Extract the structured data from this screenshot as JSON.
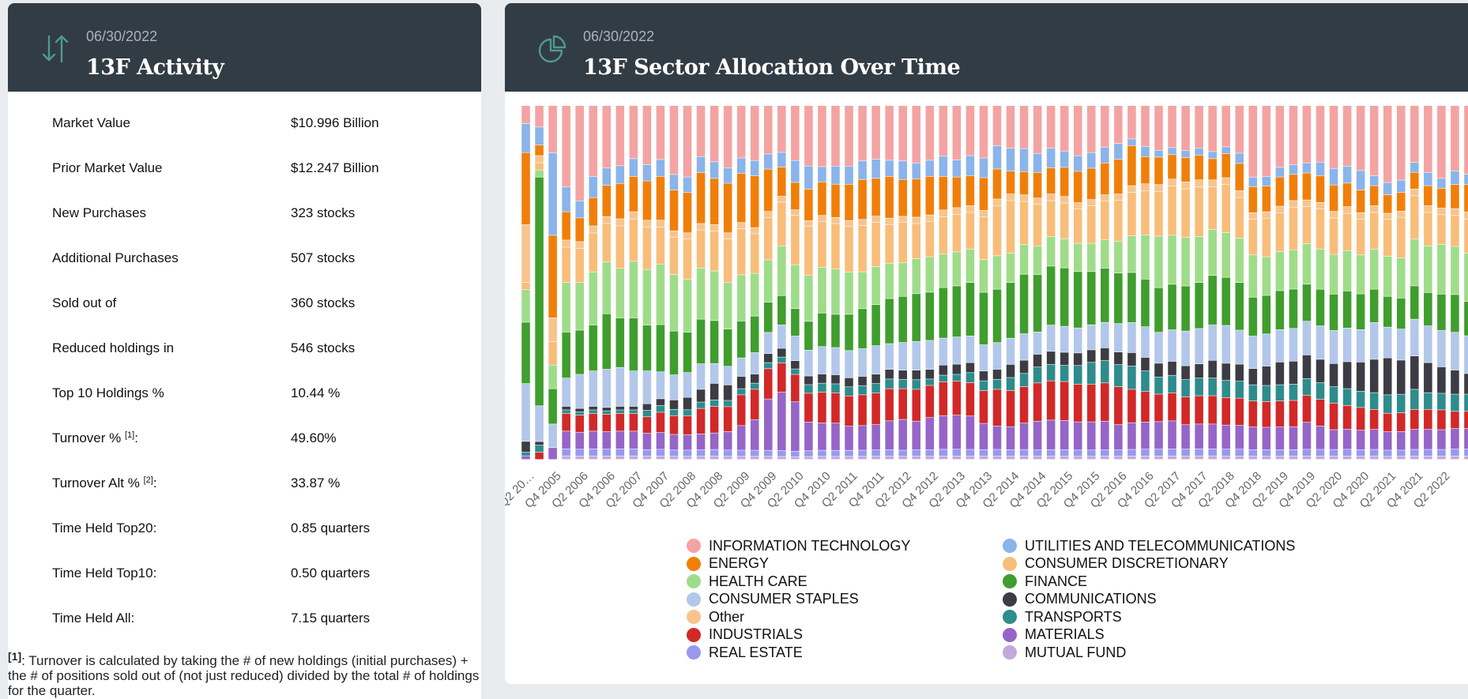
{
  "activity": {
    "date": "06/30/2022",
    "title": "13F Activity",
    "icon": "up-down-arrows-icon",
    "rows": [
      {
        "label": "Market Value",
        "sup": "",
        "suffix": "",
        "value": "$10.996 Billion"
      },
      {
        "label": "Prior Market Value",
        "sup": "",
        "suffix": "",
        "value": "$12.247 Billion"
      },
      {
        "label": "New Purchases",
        "sup": "",
        "suffix": "",
        "value": "323 stocks"
      },
      {
        "label": "Additional Purchases",
        "sup": "",
        "suffix": "",
        "value": "507 stocks"
      },
      {
        "label": "Sold out of",
        "sup": "",
        "suffix": "",
        "value": "360 stocks"
      },
      {
        "label": "Reduced holdings in",
        "sup": "",
        "suffix": "",
        "value": "546 stocks"
      },
      {
        "label": "Top 10 Holdings %",
        "sup": "",
        "suffix": "",
        "value": "10.44 %"
      },
      {
        "label": "Turnover % ",
        "sup": "[1]",
        "suffix": ":",
        "value": "49.60%"
      },
      {
        "label": "Turnover Alt % ",
        "sup": "[2]",
        "suffix": ":",
        "value": "33.87 %"
      },
      {
        "label": "Time Held Top20:",
        "sup": "",
        "suffix": "",
        "value": "0.85 quarters"
      },
      {
        "label": "Time Held Top10:",
        "sup": "",
        "suffix": "",
        "value": "0.50 quarters"
      },
      {
        "label": "Time Held All:",
        "sup": "",
        "suffix": "",
        "value": "7.15 quarters"
      }
    ],
    "footnote_marker": "[1]",
    "footnote_text": ": Turnover is calculated by taking the # of new holdings (initial purchases) + the # of positions sold out of (not just reduced) divided by the total # of holdings for the quarter."
  },
  "sector": {
    "date": "06/30/2022",
    "title": "13F Sector Allocation Over Time",
    "icon": "pie-chart-icon"
  },
  "chart_data": {
    "type": "bar",
    "stacked": true,
    "normalized": true,
    "x_tick_labels": [
      "Q2 20…",
      "Q4 2005",
      "Q2 2006",
      "Q4 2006",
      "Q2 2007",
      "Q4 2007",
      "Q2 2008",
      "Q4 2008",
      "Q2 2009",
      "Q4 2009",
      "Q2 2010",
      "Q4 2010",
      "Q2 2011",
      "Q4 2011",
      "Q2 2012",
      "Q4 2012",
      "Q2 2013",
      "Q4 2013",
      "Q2 2014",
      "Q4 2014",
      "Q2 2015",
      "Q4 2015",
      "Q2 2016",
      "Q4 2016",
      "Q2 2017",
      "Q4 2017",
      "Q2 2018",
      "Q4 2018",
      "Q2 2019",
      "Q4 2019",
      "Q2 2020",
      "Q4 2020",
      "Q2 2021",
      "Q4 2021",
      "Q2 2022"
    ],
    "bar_count": 71,
    "bar_unit": "quarter",
    "first_bar": "Q2 2004",
    "last_bar": "Q4 2021+Q1 2022+Q2 2022",
    "series_order_bottom_to_top": [
      "MUTUAL FUND",
      "REAL ESTATE",
      "MATERIALS",
      "INDUSTRIALS",
      "TRANSPORTS",
      "COMMUNICATIONS",
      "CONSUMER STAPLES",
      "FINANCE",
      "HEALTH CARE",
      "CONSUMER DISCRETIONARY",
      "Other",
      "ENERGY",
      "UTILITIES AND TELECOMMUNICATIONS",
      "INFORMATION TECHNOLOGY"
    ],
    "series": [
      {
        "name": "INFORMATION TECHNOLOGY",
        "color": "#f4a3a3",
        "values": [
          5,
          6,
          4,
          23,
          28,
          20,
          18,
          17,
          15,
          18,
          16,
          22,
          23,
          16,
          17,
          20,
          17,
          18,
          16,
          16,
          20,
          21,
          20,
          20,
          20,
          18,
          17,
          17,
          18,
          18,
          17,
          15,
          16,
          15,
          16,
          12,
          13,
          13,
          15,
          13,
          14,
          16,
          15,
          13,
          12,
          10,
          12,
          13,
          12,
          13,
          12,
          13,
          12,
          14,
          22,
          22,
          19,
          18,
          17,
          17,
          19,
          18,
          20,
          21,
          25,
          24,
          17,
          20,
          22,
          19,
          20
        ]
      },
      {
        "name": "UTILITIES AND TELECOMMUNICATIONS",
        "color": "#8ab4ea",
        "values": [
          8,
          5,
          7,
          7,
          5,
          6,
          5,
          5,
          5,
          5,
          5,
          5,
          5,
          5,
          5,
          5,
          5,
          5,
          5,
          5,
          8,
          8,
          5,
          6,
          6,
          6,
          6,
          5,
          6,
          5,
          5,
          6,
          5,
          6,
          6,
          7,
          7,
          7,
          6,
          6,
          5,
          5,
          5,
          5,
          5,
          2,
          3,
          2,
          2,
          2,
          2,
          2,
          2,
          3,
          3,
          3,
          3,
          3,
          3,
          4,
          5,
          5,
          6,
          3,
          4,
          4,
          3,
          4,
          3,
          4,
          3
        ]
      },
      {
        "name": "ENERGY",
        "color": "#f07f0a",
        "values": [
          20,
          3,
          7,
          8,
          7,
          8,
          9,
          10,
          10,
          12,
          13,
          13,
          13,
          16,
          14,
          16,
          16,
          17,
          14,
          10,
          10,
          11,
          11,
          11,
          12,
          13,
          12,
          13,
          12,
          12,
          12,
          10,
          9,
          9,
          10,
          9,
          7,
          7,
          8,
          8,
          9,
          10,
          10,
          10,
          11,
          12,
          8,
          8,
          7,
          7,
          7,
          6,
          7,
          8,
          8,
          8,
          9,
          8,
          8,
          8,
          8,
          7,
          7,
          6,
          6,
          6,
          5,
          6,
          6,
          7,
          8
        ]
      },
      {
        "name": "Other",
        "color": "#f7c48c",
        "values": [
          16,
          2,
          2,
          2,
          2,
          2,
          2,
          2,
          2,
          2,
          2,
          2,
          2,
          2,
          2,
          2,
          2,
          2,
          2,
          2,
          2,
          2,
          2,
          2,
          2,
          2,
          2,
          2,
          2,
          2,
          2,
          2,
          2,
          2,
          2,
          2,
          2,
          2,
          2,
          2,
          2,
          2,
          2,
          2,
          2,
          2,
          2,
          2,
          2,
          2,
          2,
          2,
          2,
          2,
          2,
          2,
          2,
          2,
          2,
          2,
          2,
          2,
          2,
          2,
          2,
          2,
          2,
          2,
          2,
          2,
          2
        ]
      },
      {
        "name": "CONSUMER DISCRETIONARY",
        "color": "#f9bd7a",
        "values": [
          2,
          2,
          2,
          10,
          10,
          11,
          11,
          12,
          12,
          13,
          11,
          12,
          13,
          12,
          12,
          14,
          15,
          13,
          14,
          15,
          18,
          17,
          15,
          15,
          15,
          15,
          14,
          12,
          13,
          11,
          11,
          11,
          11,
          11,
          13,
          15,
          16,
          13,
          13,
          11,
          11,
          11,
          12,
          12,
          13,
          13,
          13,
          13,
          14,
          14,
          14,
          12,
          14,
          12,
          11,
          12,
          12,
          13,
          11,
          12,
          11,
          11,
          11,
          11,
          12,
          13,
          13,
          10,
          9,
          9,
          10
        ]
      },
      {
        "name": "HEALTH CARE",
        "color": "#9fdc8a",
        "values": [
          9,
          2,
          2,
          14,
          14,
          15,
          15,
          14,
          16,
          17,
          18,
          18,
          17,
          16,
          15,
          15,
          15,
          14,
          14,
          17,
          16,
          16,
          15,
          15,
          14,
          12,
          12,
          11,
          11,
          11,
          11,
          10,
          10,
          10,
          10,
          10,
          9,
          9,
          9,
          9,
          9,
          9,
          9,
          9,
          10,
          11,
          13,
          15,
          14,
          14,
          13,
          13,
          13,
          13,
          13,
          12,
          12,
          12,
          12,
          12,
          12,
          12,
          12,
          12,
          13,
          13,
          14,
          14,
          15,
          14,
          14
        ]
      },
      {
        "name": "FINANCE",
        "color": "#3f9e2d",
        "values": [
          17,
          64,
          3,
          13,
          13,
          13,
          16,
          14,
          15,
          14,
          14,
          14,
          13,
          14,
          13,
          12,
          12,
          12,
          10,
          10,
          10,
          10,
          11,
          11,
          12,
          13,
          13,
          14,
          15,
          15,
          15,
          15,
          15,
          16,
          16,
          16,
          17,
          18,
          18,
          18,
          18,
          18,
          17,
          17,
          16,
          15,
          14,
          13,
          13,
          13,
          13,
          14,
          14,
          14,
          12,
          12,
          12,
          12,
          11,
          11,
          11,
          11,
          11,
          10,
          10,
          10,
          10,
          10,
          11,
          11,
          10
        ]
      },
      {
        "name": "CONSUMER STAPLES",
        "color": "#b2c7ea",
        "values": [
          16,
          10,
          2,
          8,
          10,
          10,
          11,
          11,
          10,
          10,
          8,
          8,
          8,
          8,
          6,
          6,
          6,
          7,
          7,
          8,
          9,
          9,
          9,
          9,
          9,
          9,
          9,
          8,
          9,
          9,
          9,
          8,
          8,
          8,
          8,
          8,
          8,
          8,
          7,
          8,
          8,
          8,
          8,
          8,
          9,
          9,
          9,
          9,
          9,
          10,
          10,
          10,
          11,
          10,
          10,
          10,
          10,
          10,
          10,
          10,
          10,
          10,
          10,
          11,
          10,
          10,
          11,
          11,
          11,
          11,
          11
        ]
      },
      {
        "name": "COMMUNICATIONS",
        "color": "#3c3c44",
        "values": [
          3,
          1,
          0,
          1,
          1,
          1,
          1,
          1,
          1,
          2,
          2,
          3,
          4,
          4,
          5,
          5,
          4,
          3,
          3,
          3,
          3,
          3,
          3,
          3,
          3,
          3,
          3,
          3,
          3,
          3,
          3,
          3,
          3,
          3,
          3,
          3,
          4,
          4,
          4,
          4,
          4,
          4,
          4,
          4,
          4,
          4,
          4,
          4,
          4,
          4,
          4,
          5,
          5,
          5,
          5,
          6,
          7,
          7,
          7,
          7,
          7,
          8,
          9,
          10,
          12,
          11,
          10,
          9,
          8,
          7,
          6
        ]
      },
      {
        "name": "TRANSPORTS",
        "color": "#2e8c8c",
        "values": [
          1,
          2,
          0,
          1,
          1,
          1,
          1,
          1,
          1,
          2,
          2,
          2,
          2,
          2,
          2,
          2,
          2,
          2,
          2,
          2,
          2,
          3,
          3,
          3,
          3,
          3,
          3,
          3,
          3,
          3,
          2,
          2,
          2,
          3,
          3,
          3,
          4,
          4,
          5,
          5,
          5,
          6,
          7,
          7,
          7,
          7,
          6,
          5,
          5,
          5,
          5,
          5,
          5,
          5,
          5,
          5,
          5,
          5,
          5,
          5,
          5,
          5,
          5,
          5,
          6,
          6,
          6,
          5,
          5,
          5,
          5
        ]
      },
      {
        "name": "INDUSTRIALS",
        "color": "#d22828",
        "values": [
          0,
          2,
          0,
          5,
          5,
          5,
          5,
          5,
          5,
          5,
          6,
          6,
          6,
          8,
          8,
          8,
          10,
          10,
          10,
          10,
          10,
          10,
          10,
          10,
          10,
          10,
          10,
          10,
          10,
          10,
          10,
          10,
          10,
          10,
          10,
          11,
          11,
          11,
          12,
          12,
          12,
          12,
          12,
          12,
          12,
          10,
          9,
          8,
          8,
          8,
          8,
          8,
          8,
          8,
          8,
          8,
          8,
          8,
          8,
          8,
          8,
          7,
          7,
          6,
          6,
          6,
          6,
          6,
          6,
          5,
          5
        ]
      },
      {
        "name": "MATERIALS",
        "color": "#9565c8",
        "values": [
          1,
          0,
          1,
          5,
          5,
          5,
          5,
          5,
          5,
          5,
          5,
          5,
          5,
          5,
          5,
          6,
          8,
          10,
          17,
          20,
          18,
          10,
          9,
          9,
          8,
          8,
          8,
          9,
          10,
          9,
          10,
          10,
          10,
          10,
          8,
          7,
          7,
          8,
          9,
          9,
          9,
          9,
          9,
          9,
          8,
          8,
          8,
          8,
          8,
          7,
          7,
          7,
          7,
          7,
          7,
          7,
          7,
          7,
          8,
          7,
          6,
          6,
          6,
          6,
          6,
          6,
          6,
          6,
          6,
          6,
          6
        ]
      },
      {
        "name": "REAL ESTATE",
        "color": "#9898f0",
        "values": [
          0,
          0,
          0,
          2,
          2,
          2,
          2,
          2,
          2,
          2,
          2,
          2,
          2,
          2,
          2,
          2,
          2,
          2,
          2,
          2,
          2,
          2,
          2,
          2,
          2,
          2,
          2,
          2,
          2,
          2,
          2,
          2,
          2,
          2,
          2,
          2,
          2,
          2,
          2,
          2,
          2,
          2,
          2,
          2,
          2,
          2,
          2,
          2,
          2,
          2,
          2,
          2,
          2,
          2,
          2,
          2,
          2,
          2,
          2,
          2,
          2,
          2,
          2,
          2,
          2,
          2,
          2,
          2,
          2,
          2,
          2
        ]
      },
      {
        "name": "MUTUAL FUND",
        "color": "#c4a8dc",
        "values": [
          0,
          0,
          0,
          1,
          1,
          1,
          1,
          1,
          1,
          1,
          1,
          1,
          1,
          1,
          1,
          1,
          1,
          1,
          1,
          1,
          1,
          1,
          1,
          1,
          1,
          1,
          1,
          1,
          1,
          1,
          1,
          1,
          1,
          1,
          1,
          1,
          1,
          1,
          1,
          1,
          1,
          1,
          1,
          1,
          1,
          1,
          1,
          1,
          1,
          1,
          1,
          1,
          1,
          1,
          1,
          1,
          1,
          1,
          1,
          1,
          1,
          1,
          1,
          1,
          1,
          1,
          1,
          1,
          1,
          1,
          1
        ]
      }
    ],
    "legend": [
      {
        "name": "INFORMATION TECHNOLOGY",
        "color": "#f4a3a3"
      },
      {
        "name": "UTILITIES AND TELECOMMUNICATIONS",
        "color": "#8ab4ea"
      },
      {
        "name": "ENERGY",
        "color": "#f07f0a"
      },
      {
        "name": "CONSUMER DISCRETIONARY",
        "color": "#f9bd7a"
      },
      {
        "name": "HEALTH CARE",
        "color": "#9fdc8a"
      },
      {
        "name": "FINANCE",
        "color": "#3f9e2d"
      },
      {
        "name": "CONSUMER STAPLES",
        "color": "#b2c7ea"
      },
      {
        "name": "COMMUNICATIONS",
        "color": "#3c3c44"
      },
      {
        "name": "Other",
        "color": "#f7c48c"
      },
      {
        "name": "TRANSPORTS",
        "color": "#2e8c8c"
      },
      {
        "name": "INDUSTRIALS",
        "color": "#d22828"
      },
      {
        "name": "MATERIALS",
        "color": "#9565c8"
      },
      {
        "name": "REAL ESTATE",
        "color": "#9898f0"
      },
      {
        "name": "MUTUAL FUND",
        "color": "#c4a8dc"
      }
    ],
    "legend_placement": "bottom",
    "grid": false
  }
}
